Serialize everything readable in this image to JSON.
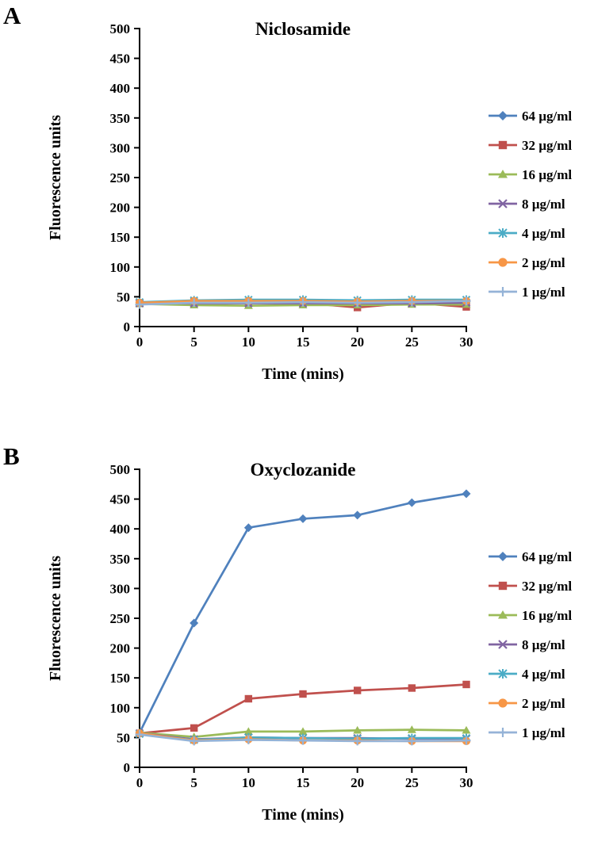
{
  "figure": {
    "panels": [
      {
        "label": "A"
      },
      {
        "label": "B"
      }
    ]
  },
  "chart_data": [
    {
      "type": "line",
      "panel": "A",
      "title": "Niclosamide",
      "xlabel": "Time (mins)",
      "ylabel": "Fluorescence units",
      "x": [
        0,
        5,
        10,
        15,
        20,
        25,
        30
      ],
      "xlim": [
        0,
        30
      ],
      "xtick_step": 5,
      "ylim": [
        0,
        500
      ],
      "ytick_step": 50,
      "grid": false,
      "legend_position": "right",
      "series": [
        {
          "name": "64 µg/ml",
          "color": "#4F81BD",
          "marker": "diamond",
          "values": [
            40,
            41,
            42,
            42,
            41,
            42,
            42
          ]
        },
        {
          "name": "32 µg/ml",
          "color": "#C0504D",
          "marker": "square",
          "values": [
            40,
            42,
            41,
            40,
            32,
            40,
            33
          ]
        },
        {
          "name": "16 µg/ml",
          "color": "#9BBB59",
          "marker": "triangle",
          "values": [
            38,
            36,
            35,
            36,
            36,
            37,
            37
          ]
        },
        {
          "name": "8 µg/ml",
          "color": "#8064A2",
          "marker": "x",
          "values": [
            39,
            39,
            39,
            39,
            39,
            39,
            40
          ]
        },
        {
          "name": "4 µg/ml",
          "color": "#4BACC6",
          "marker": "asterisk",
          "values": [
            41,
            44,
            45,
            45,
            44,
            45,
            45
          ]
        },
        {
          "name": "2 µg/ml",
          "color": "#F79646",
          "marker": "circle",
          "values": [
            40,
            43,
            43,
            43,
            42,
            43,
            43
          ]
        },
        {
          "name": "1 µg/ml",
          "color": "#95B3D7",
          "marker": "plus",
          "values": [
            37,
            40,
            40,
            41,
            40,
            41,
            43
          ]
        }
      ]
    },
    {
      "type": "line",
      "panel": "B",
      "title": "Oxyclozanide",
      "xlabel": "Time (mins)",
      "ylabel": "Fluorescence units",
      "x": [
        0,
        5,
        10,
        15,
        20,
        25,
        30
      ],
      "xlim": [
        0,
        30
      ],
      "xtick_step": 5,
      "ylim": [
        0,
        500
      ],
      "ytick_step": 50,
      "grid": false,
      "legend_position": "right",
      "series": [
        {
          "name": "64 µg/ml",
          "color": "#4F81BD",
          "marker": "diamond",
          "values": [
            58,
            242,
            402,
            417,
            423,
            444,
            459
          ]
        },
        {
          "name": "32 µg/ml",
          "color": "#C0504D",
          "marker": "square",
          "values": [
            57,
            66,
            115,
            123,
            129,
            133,
            139
          ]
        },
        {
          "name": "16 µg/ml",
          "color": "#9BBB59",
          "marker": "triangle",
          "values": [
            58,
            51,
            60,
            60,
            62,
            63,
            62
          ]
        },
        {
          "name": "8 µg/ml",
          "color": "#8064A2",
          "marker": "x",
          "values": [
            57,
            47,
            50,
            49,
            49,
            48,
            48
          ]
        },
        {
          "name": "4 µg/ml",
          "color": "#4BACC6",
          "marker": "asterisk",
          "values": [
            56,
            46,
            50,
            49,
            48,
            49,
            49
          ]
        },
        {
          "name": "2 µg/ml",
          "color": "#F79646",
          "marker": "circle",
          "values": [
            57,
            45,
            47,
            45,
            45,
            44,
            44
          ]
        },
        {
          "name": "1 µg/ml",
          "color": "#95B3D7",
          "marker": "plus",
          "values": [
            55,
            44,
            46,
            45,
            44,
            44,
            45
          ]
        }
      ]
    }
  ]
}
